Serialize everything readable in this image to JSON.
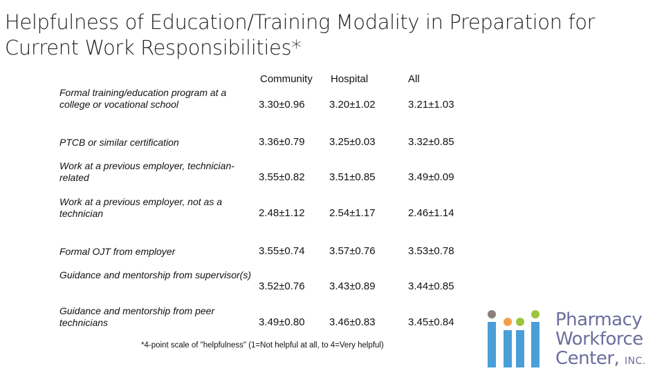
{
  "title": "Helpfulness of Education/Training Modality in Preparation for Current Work Responsibilities*",
  "columns": [
    "Community",
    "Hospital",
    "All"
  ],
  "rows": [
    {
      "label": "Formal training/education program at a college or vocational school",
      "values": [
        "3.30±0.96",
        "3.20±1.02",
        "3.21±1.03"
      ]
    },
    {
      "label": "PTCB or similar certification",
      "values": [
        "3.36±0.79",
        "3.25±0.03",
        "3.32±0.85"
      ]
    },
    {
      "label": "Work at a previous employer, technician-related",
      "values": [
        "3.55±0.82",
        "3.51±0.85",
        "3.49±0.09"
      ]
    },
    {
      "label": "Work at a previous employer, not as a technician",
      "values": [
        "2.48±1.12",
        "2.54±1.17",
        "2.46±1.14"
      ]
    },
    {
      "label": "Formal OJT from employer",
      "values": [
        "3.55±0.74",
        "3.57±0.76",
        "3.53±0.78"
      ]
    },
    {
      "label": "Guidance and mentorship from supervisor(s)",
      "values": [
        "3.52±0.76",
        "3.43±0.89",
        "3.44±0.85"
      ]
    },
    {
      "label": "Guidance and mentorship from peer technicians",
      "values": [
        "3.49±0.80",
        "3.46±0.83",
        "3.45±0.84"
      ]
    }
  ],
  "footnote": "*4-point scale of \"helpfulness\" (1=Not helpful at all, to 4=Very helpful)",
  "logo": {
    "line1": "Pharmacy",
    "line2": "Workforce",
    "line3": "Center,",
    "inc": "INC.",
    "colors": {
      "bars": "#4a9fd8",
      "gray": "#8c7f7a",
      "orange": "#f4a04a",
      "green": "#9bc53d",
      "text": "#6b6e9c"
    }
  }
}
